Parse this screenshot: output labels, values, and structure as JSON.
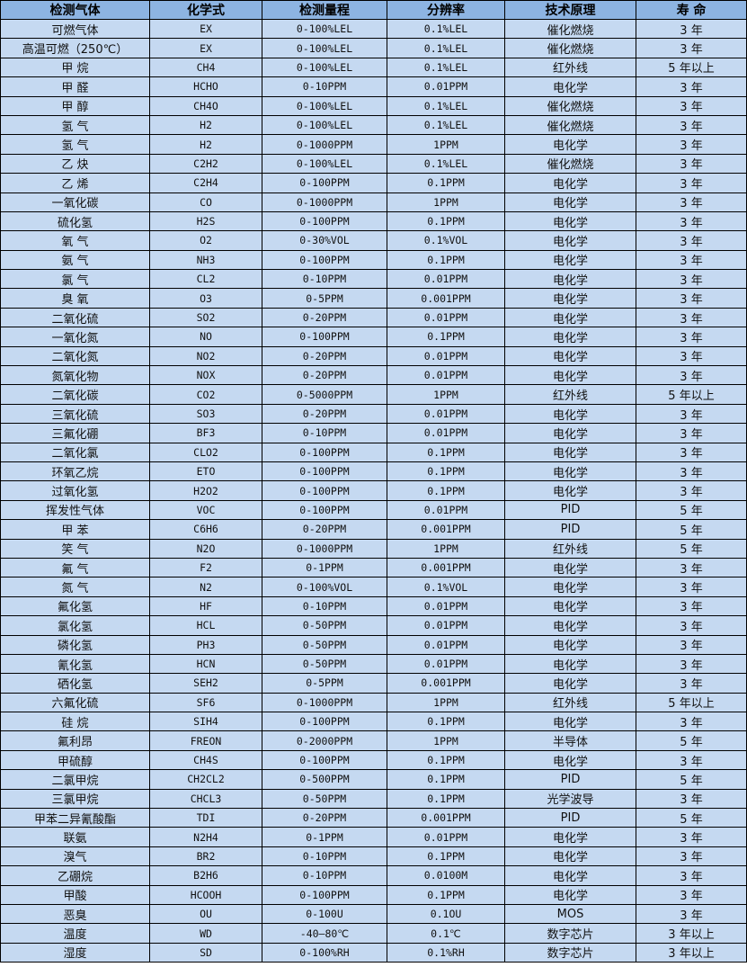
{
  "colors": {
    "header_bg": "#8DB4E2",
    "cell_bg": "#C5D9F1",
    "border": "#000000"
  },
  "headers": [
    "检测气体",
    "化学式",
    "检测量程",
    "分辨率",
    "技术原理",
    "寿 命"
  ],
  "rows": [
    [
      "可燃气体",
      "EX",
      "0-100%LEL",
      "0.1%LEL",
      "催化燃烧",
      "3 年"
    ],
    [
      "高温可燃（250℃）",
      "EX",
      "0-100%LEL",
      "0.1%LEL",
      "催化燃烧",
      "3 年"
    ],
    [
      "甲 烷",
      "CH4",
      "0-100%LEL",
      "0.1%LEL",
      "红外线",
      "5 年以上"
    ],
    [
      "甲 醛",
      "HCHO",
      "0-10PPM",
      "0.01PPM",
      "电化学",
      "3 年"
    ],
    [
      "甲 醇",
      "CH4O",
      "0-100%LEL",
      "0.1%LEL",
      "催化燃烧",
      "3 年"
    ],
    [
      "氢 气",
      "H2",
      "0-100%LEL",
      "0.1%LEL",
      "催化燃烧",
      "3 年"
    ],
    [
      "氢 气",
      "H2",
      "0-1000PPM",
      "1PPM",
      "电化学",
      "3 年"
    ],
    [
      "乙 炔",
      "C2H2",
      "0-100%LEL",
      "0.1%LEL",
      "催化燃烧",
      "3 年"
    ],
    [
      "乙 烯",
      "C2H4",
      "0-100PPM",
      "0.1PPM",
      "电化学",
      "3 年"
    ],
    [
      "一氧化碳",
      "CO",
      "0-1000PPM",
      "1PPM",
      "电化学",
      "3 年"
    ],
    [
      "硫化氢",
      "H2S",
      "0-100PPM",
      "0.1PPM",
      "电化学",
      "3 年"
    ],
    [
      "氧 气",
      "O2",
      "0-30%VOL",
      "0.1%VOL",
      "电化学",
      "3 年"
    ],
    [
      "氨 气",
      "NH3",
      "0-100PPM",
      "0.1PPM",
      "电化学",
      "3 年"
    ],
    [
      "氯 气",
      "CL2",
      "0-10PPM",
      "0.01PPM",
      "电化学",
      "3 年"
    ],
    [
      "臭 氧",
      "O3",
      "0-5PPM",
      "0.001PPM",
      "电化学",
      "3 年"
    ],
    [
      "二氧化硫",
      "SO2",
      "0-20PPM",
      "0.01PPM",
      "电化学",
      "3 年"
    ],
    [
      "一氧化氮",
      "NO",
      "0-100PPM",
      "0.1PPM",
      "电化学",
      "3 年"
    ],
    [
      "二氧化氮",
      "NO2",
      "0-20PPM",
      "0.01PPM",
      "电化学",
      "3 年"
    ],
    [
      "氮氧化物",
      "NOX",
      "0-20PPM",
      "0.01PPM",
      "电化学",
      "3 年"
    ],
    [
      "二氧化碳",
      "CO2",
      "0-5000PPM",
      "1PPM",
      "红外线",
      "5 年以上"
    ],
    [
      "三氧化硫",
      "SO3",
      "0-20PPM",
      "0.01PPM",
      "电化学",
      "3 年"
    ],
    [
      "三氟化硼",
      "BF3",
      "0-10PPM",
      "0.01PPM",
      "电化学",
      "3 年"
    ],
    [
      "二氧化氯",
      "CLO2",
      "0-100PPM",
      "0.1PPM",
      "电化学",
      "3 年"
    ],
    [
      "环氧乙烷",
      "ETO",
      "0-100PPM",
      "0.1PPM",
      "电化学",
      "3 年"
    ],
    [
      "过氧化氢",
      "H2O2",
      "0-100PPM",
      "0.1PPM",
      "电化学",
      "3 年"
    ],
    [
      "挥发性气体",
      "VOC",
      "0-100PPM",
      "0.01PPM",
      "PID",
      "5 年"
    ],
    [
      "甲 苯",
      "C6H6",
      "0-20PPM",
      "0.001PPM",
      "PID",
      "5 年"
    ],
    [
      "笑 气",
      "N2O",
      "0-1000PPM",
      "1PPM",
      "红外线",
      "5 年"
    ],
    [
      "氟 气",
      "F2",
      "0-1PPM",
      "0.001PPM",
      "电化学",
      "3 年"
    ],
    [
      "氮 气",
      "N2",
      "0-100%VOL",
      "0.1%VOL",
      "电化学",
      "3 年"
    ],
    [
      "氟化氢",
      "HF",
      "0-10PPM",
      "0.01PPM",
      "电化学",
      "3 年"
    ],
    [
      "氯化氢",
      "HCL",
      "0-50PPM",
      "0.01PPM",
      "电化学",
      "3 年"
    ],
    [
      "磷化氢",
      "PH3",
      "0-50PPM",
      "0.01PPM",
      "电化学",
      "3 年"
    ],
    [
      "氰化氢",
      "HCN",
      "0-50PPM",
      "0.01PPM",
      "电化学",
      "3 年"
    ],
    [
      "硒化氢",
      "SEH2",
      "0-5PPM",
      "0.001PPM",
      "电化学",
      "3 年"
    ],
    [
      "六氟化硫",
      "SF6",
      "0-1000PPM",
      "1PPM",
      "红外线",
      "5 年以上"
    ],
    [
      "硅 烷",
      "SIH4",
      "0-100PPM",
      "0.1PPM",
      "电化学",
      "3 年"
    ],
    [
      "氟利昂",
      "FREON",
      "0-2000PPM",
      "1PPM",
      "半导体",
      "5 年"
    ],
    [
      "甲硫醇",
      "CH4S",
      "0-100PPM",
      "0.1PPM",
      "电化学",
      "3 年"
    ],
    [
      "二氯甲烷",
      "CH2CL2",
      "0-500PPM",
      "0.1PPM",
      "PID",
      "5 年"
    ],
    [
      "三氯甲烷",
      "CHCL3",
      "0-50PPM",
      "0.1PPM",
      "光学波导",
      "3 年"
    ],
    [
      "甲苯二异氰酸酯",
      "TDI",
      "0-20PPM",
      "0.001PPM",
      "PID",
      "5 年"
    ],
    [
      "联氨",
      "N2H4",
      "0-1PPM",
      "0.01PPM",
      "电化学",
      "3 年"
    ],
    [
      "溴气",
      "BR2",
      "0-10PPM",
      "0.1PPM",
      "电化学",
      "3 年"
    ],
    [
      "乙硼烷",
      "B2H6",
      "0-10PPM",
      "0.0100M",
      "电化学",
      "3 年"
    ],
    [
      "甲酸",
      "HCOOH",
      "0-100PPM",
      "0.1PPM",
      "电化学",
      "3 年"
    ],
    [
      "恶臭",
      "OU",
      "0-100U",
      "0.1OU",
      "MOS",
      "3 年"
    ],
    [
      "温度",
      "WD",
      "-40—80℃",
      "0.1℃",
      "数字芯片",
      "3 年以上"
    ],
    [
      "湿度",
      "SD",
      "0-100%RH",
      "0.1%RH",
      "数字芯片",
      "3 年以上"
    ]
  ]
}
